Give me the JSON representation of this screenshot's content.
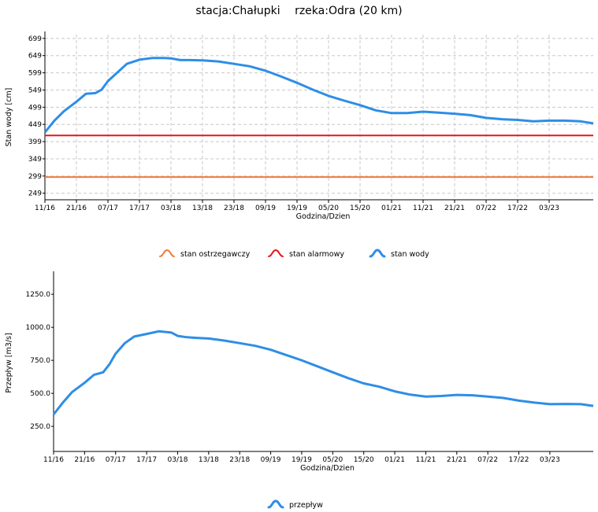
{
  "title": {
    "station": "stacja:Chałupki",
    "river": "rzeka:Odra (20 km)"
  },
  "colors": {
    "water": "#2e8ee6",
    "warning": "#f07a3c",
    "alarm": "#e8141c",
    "grid": "#c8c8c8"
  },
  "chart_data": [
    {
      "type": "line",
      "xlabel": "Godzina/Dzien",
      "ylabel": "Stan wody [cm]",
      "x_ticks": [
        "11/16",
        "21/16",
        "07/17",
        "17/17",
        "03/18",
        "13/18",
        "23/18",
        "09/19",
        "19/19",
        "05/20",
        "15/20",
        "01/21",
        "11/21",
        "21/21",
        "07/22",
        "17/22",
        "03/23"
      ],
      "y_ticks": [
        "699",
        "649",
        "599",
        "549",
        "499",
        "449",
        "399",
        "349",
        "299",
        "249"
      ],
      "ylim": [
        230,
        710
      ],
      "xlim": [
        0,
        17.4
      ],
      "grid": true,
      "legend": "bottom",
      "series": [
        {
          "name": "stan wody",
          "color_key": "water",
          "x": [
            0,
            0.3,
            0.6,
            1.0,
            1.3,
            1.6,
            1.8,
            2.0,
            2.3,
            2.6,
            3.0,
            3.4,
            3.8,
            4.0,
            4.3,
            4.6,
            5.0,
            5.5,
            6.0,
            6.5,
            7.0,
            7.5,
            8.0,
            8.5,
            9.0,
            9.5,
            10.0,
            10.5,
            11.0,
            11.5,
            12.0,
            12.5,
            13.0,
            13.5,
            14.0,
            14.5,
            15.0,
            15.5,
            16.0,
            16.5,
            17.0,
            17.4
          ],
          "values": [
            426,
            460,
            487,
            515,
            538,
            540,
            550,
            575,
            600,
            625,
            637,
            642,
            642,
            641,
            636,
            636,
            635,
            632,
            625,
            618,
            605,
            588,
            570,
            550,
            532,
            518,
            505,
            490,
            482,
            482,
            486,
            483,
            480,
            476,
            468,
            464,
            462,
            458,
            460,
            460,
            458,
            452
          ]
        },
        {
          "name": "stan ostrzegawczy",
          "color_key": "warning",
          "x": [
            0,
            17.4
          ],
          "values": [
            296,
            296
          ]
        },
        {
          "name": "stan alarmowy",
          "color_key": "alarm",
          "x": [
            0,
            17.4
          ],
          "values": [
            417,
            417
          ]
        }
      ]
    },
    {
      "type": "line",
      "xlabel": "Godzina/Dzien",
      "ylabel": "Przepływ [m3/s]",
      "x_ticks": [
        "11/16",
        "21/16",
        "07/17",
        "17/17",
        "03/18",
        "13/18",
        "23/18",
        "09/19",
        "19/19",
        "05/20",
        "15/20",
        "01/21",
        "11/21",
        "21/21",
        "07/22",
        "17/22",
        "03/23"
      ],
      "y_ticks": [
        "1250.0",
        "1000.0",
        "750.0",
        "500.0",
        "250.0"
      ],
      "ylim": [
        60,
        1400
      ],
      "xlim": [
        0,
        17.4
      ],
      "grid": false,
      "legend": "bottom",
      "series": [
        {
          "name": "przepływ",
          "color_key": "water",
          "x": [
            0,
            0.3,
            0.6,
            1.0,
            1.3,
            1.6,
            1.8,
            2.0,
            2.3,
            2.6,
            3.0,
            3.4,
            3.8,
            4.0,
            4.3,
            4.6,
            5.0,
            5.5,
            6.0,
            6.5,
            7.0,
            7.5,
            8.0,
            8.5,
            9.0,
            9.5,
            10.0,
            10.5,
            11.0,
            11.5,
            12.0,
            12.5,
            13.0,
            13.5,
            14.0,
            14.5,
            15.0,
            15.5,
            16.0,
            16.5,
            17.0,
            17.4
          ],
          "values": [
            340,
            430,
            510,
            580,
            640,
            660,
            720,
            800,
            880,
            930,
            950,
            970,
            960,
            935,
            925,
            920,
            915,
            900,
            880,
            860,
            830,
            790,
            750,
            705,
            660,
            615,
            575,
            550,
            515,
            490,
            475,
            480,
            488,
            485,
            475,
            465,
            445,
            430,
            418,
            420,
            418,
            405
          ]
        }
      ]
    }
  ]
}
